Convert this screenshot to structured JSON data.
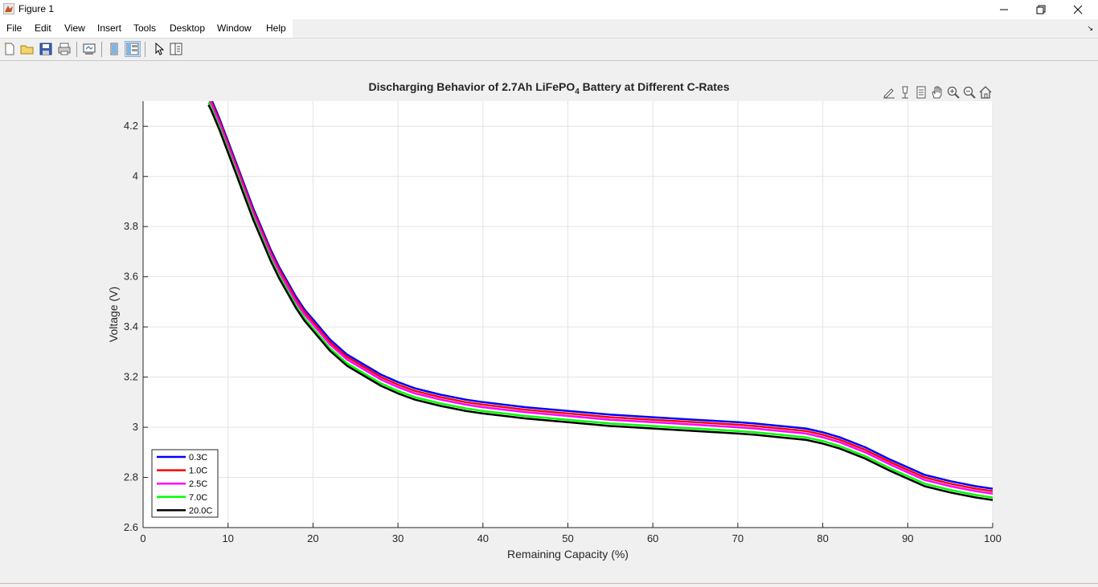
{
  "window": {
    "title": "Figure 1"
  },
  "menu": [
    "File",
    "Edit",
    "View",
    "Insert",
    "Tools",
    "Desktop",
    "Window",
    "Help"
  ],
  "toolbar_icons": [
    "new-figure-icon",
    "open-file-icon",
    "save-icon",
    "print-icon",
    "link-plot-icon",
    "hide-plot-tools-icon",
    "show-plot-tools-icon",
    "edit-plot-icon",
    "open-property-inspector-icon"
  ],
  "axes_toolbar_icons": [
    "brush-icon",
    "data-tips-icon",
    "export-icon",
    "pan-icon",
    "zoom-in-icon",
    "zoom-out-icon",
    "restore-view-icon"
  ],
  "chart_data": {
    "type": "line",
    "title_main": "Discharging Behavior of 2.7Ah LiFePO",
    "title_sub": "4",
    "title_end": " Battery at Different C-Rates",
    "xlabel": "Remaining Capacity (%)",
    "ylabel": "Voltage (V)",
    "xlim": [
      0,
      100
    ],
    "ylim": [
      2.6,
      4.3
    ],
    "xticks": [
      0,
      10,
      20,
      30,
      40,
      50,
      60,
      70,
      80,
      90,
      100
    ],
    "yticks": [
      2.6,
      2.8,
      3,
      3.2,
      3.4,
      3.6,
      3.8,
      4,
      4.2
    ],
    "grid": true,
    "legend_position": "bottom-left",
    "x": [
      7.7,
      8,
      9,
      10,
      11,
      12,
      13,
      14,
      15,
      16,
      17,
      18,
      19,
      20,
      22,
      24,
      26,
      28,
      30,
      32,
      35,
      38,
      40,
      45,
      50,
      55,
      60,
      65,
      70,
      72,
      75,
      78,
      80,
      82,
      85,
      88,
      90,
      92,
      95,
      98,
      100
    ],
    "base_voltage": [
      4.33,
      4.31,
      4.23,
      4.14,
      4.05,
      3.96,
      3.87,
      3.79,
      3.71,
      3.64,
      3.58,
      3.52,
      3.47,
      3.43,
      3.35,
      3.29,
      3.25,
      3.21,
      3.18,
      3.155,
      3.13,
      3.11,
      3.1,
      3.08,
      3.065,
      3.05,
      3.04,
      3.03,
      3.02,
      3.015,
      3.005,
      2.995,
      2.98,
      2.96,
      2.92,
      2.87,
      2.84,
      2.81,
      2.785,
      2.765,
      2.755
    ],
    "series": [
      {
        "name": "0.3C",
        "color": "#0000ff",
        "offset": 0
      },
      {
        "name": "1.0C",
        "color": "#ff0000",
        "offset": -0.01
      },
      {
        "name": "2.5C",
        "color": "#ff00ff",
        "offset": -0.02
      },
      {
        "name": "7.0C",
        "color": "#00ff00",
        "offset": -0.035
      },
      {
        "name": "20.0C",
        "color": "#000000",
        "offset": -0.045
      }
    ]
  }
}
